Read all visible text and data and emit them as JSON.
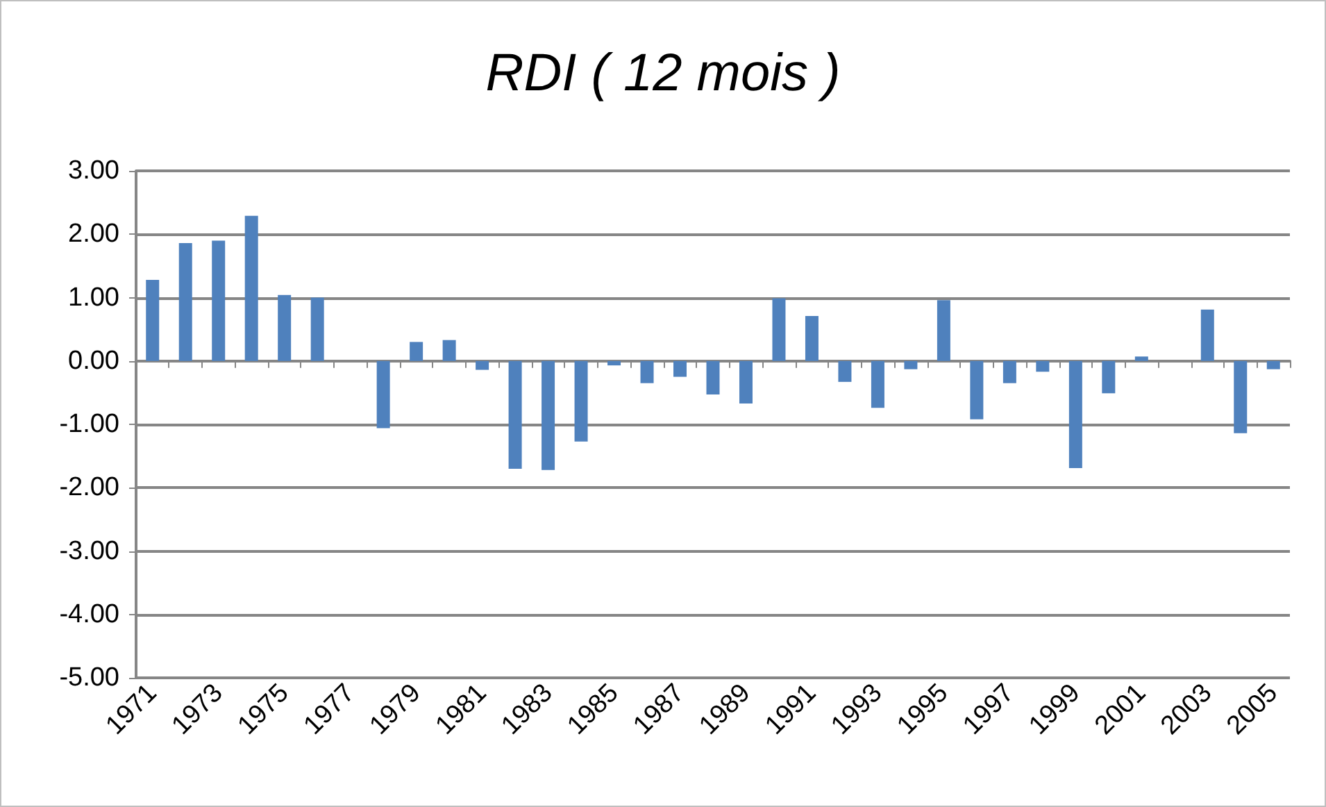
{
  "chart_data": {
    "type": "bar",
    "title": "RDI ( 12 mois )",
    "categories": [
      "1971",
      null,
      "1973",
      null,
      "1975",
      null,
      "1977",
      null,
      "1979",
      null,
      "1981",
      null,
      "1983",
      null,
      "1985",
      null,
      "1987",
      null,
      "1989",
      null,
      "1991",
      null,
      "1993",
      null,
      "1995",
      null,
      "1997",
      null,
      "1999",
      null,
      "2001",
      null,
      "2003",
      null,
      "2005"
    ],
    "values": [
      1.28,
      1.86,
      1.9,
      2.29,
      1.04,
      1.0,
      null,
      -1.06,
      0.3,
      0.33,
      -0.14,
      -1.7,
      -1.72,
      -1.27,
      -0.07,
      -0.35,
      -0.25,
      -0.53,
      -0.67,
      0.99,
      0.71,
      -0.33,
      -0.74,
      -0.13,
      0.96,
      -0.92,
      -0.35,
      -0.17,
      -1.69,
      -0.51,
      0.07,
      null,
      0.81,
      -1.14,
      -0.13
    ],
    "color": "#4f81bd",
    "ylim": [
      -5,
      3
    ],
    "yticks": [
      {
        "value": -5,
        "label": "-5.00"
      },
      {
        "value": -4,
        "label": "-4.00"
      },
      {
        "value": -3,
        "label": "-3.00"
      },
      {
        "value": -2,
        "label": "-2.00"
      },
      {
        "value": -1,
        "label": "-1.00"
      },
      {
        "value": 0,
        "label": "0.00"
      },
      {
        "value": 1,
        "label": "1.00"
      },
      {
        "value": 2,
        "label": "2.00"
      },
      {
        "value": 3,
        "label": "3.00"
      }
    ],
    "grid": "y"
  }
}
